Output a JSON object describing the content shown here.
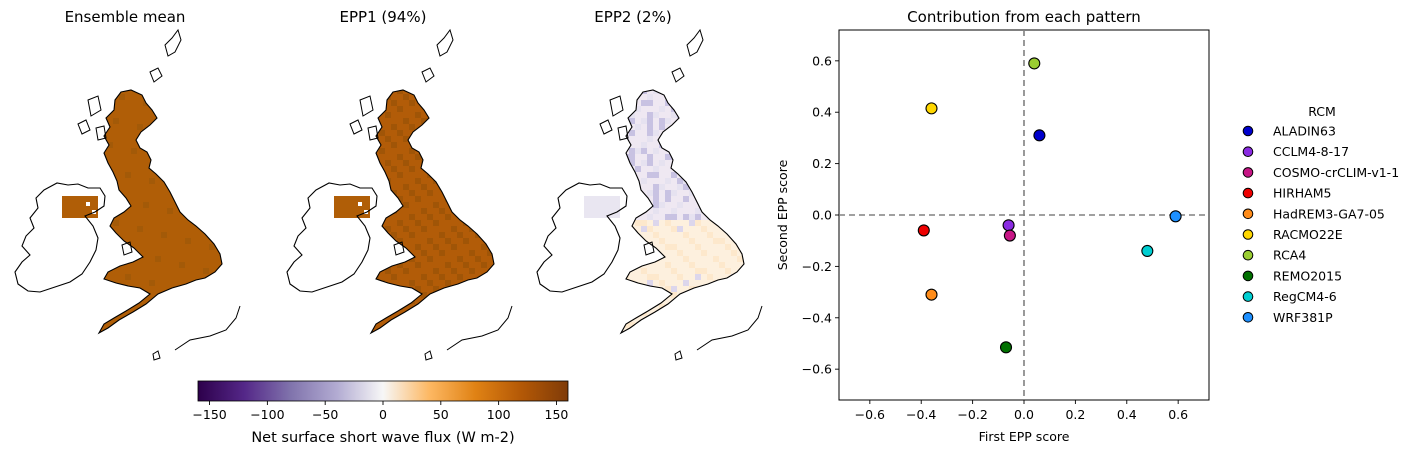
{
  "maps": [
    {
      "title": "Ensemble mean",
      "kind": "mean"
    },
    {
      "title": "EPP1 (94%)",
      "kind": "epp1"
    },
    {
      "title": "EPP2 (2%)",
      "kind": "epp2"
    }
  ],
  "colorbar": {
    "label": "Net surface short wave flux (W m-2)",
    "min": -160,
    "max": 160,
    "ticks": [
      -150,
      -100,
      -50,
      0,
      50,
      100,
      150
    ],
    "tick_labels": [
      "−150",
      "−100",
      "−50",
      "0",
      "50",
      "100",
      "150"
    ],
    "colormap": "PuOr_r"
  },
  "chart_data": {
    "type": "scatter",
    "title": "Contribution from each pattern",
    "xlabel": "First EPP score",
    "ylabel": "Second EPP score",
    "xlim": [
      -0.72,
      0.72
    ],
    "ylim": [
      -0.72,
      0.72
    ],
    "xticks": [
      -0.6,
      -0.4,
      -0.2,
      0.0,
      0.2,
      0.4,
      0.6
    ],
    "xtick_labels": [
      "−0.6",
      "−0.4",
      "−0.2",
      "0.0",
      "0.2",
      "0.4",
      "0.6"
    ],
    "yticks": [
      -0.6,
      -0.4,
      -0.2,
      0.0,
      0.2,
      0.4,
      0.6
    ],
    "ytick_labels": [
      "−0.6",
      "−0.4",
      "−0.2",
      "0.0",
      "0.2",
      "0.4",
      "0.6"
    ],
    "reference_lines": {
      "x": 0,
      "y": 0
    },
    "legend_title": "RCM",
    "legend_position": "right",
    "series": [
      {
        "name": "ALADIN63",
        "x": 0.06,
        "y": 0.31,
        "color": "#0000cd"
      },
      {
        "name": "CCLM4-8-17",
        "x": -0.06,
        "y": -0.04,
        "color": "#8a2be2"
      },
      {
        "name": "COSMO-crCLIM-v1-1",
        "x": -0.055,
        "y": -0.08,
        "color": "#c71585"
      },
      {
        "name": "HIRHAM5",
        "x": -0.39,
        "y": -0.06,
        "color": "#ee0000"
      },
      {
        "name": "HadREM3-GA7-05",
        "x": -0.36,
        "y": -0.31,
        "color": "#ff8c1a"
      },
      {
        "name": "RACMO22E",
        "x": -0.36,
        "y": 0.415,
        "color": "#ffd700"
      },
      {
        "name": "RCA4",
        "x": 0.04,
        "y": 0.59,
        "color": "#9acd32"
      },
      {
        "name": "REMO2015",
        "x": -0.07,
        "y": -0.515,
        "color": "#007000"
      },
      {
        "name": "RegCM4-6",
        "x": 0.48,
        "y": -0.14,
        "color": "#00ced1"
      },
      {
        "name": "WRF381P",
        "x": 0.59,
        "y": -0.005,
        "color": "#1e90ff"
      }
    ]
  }
}
